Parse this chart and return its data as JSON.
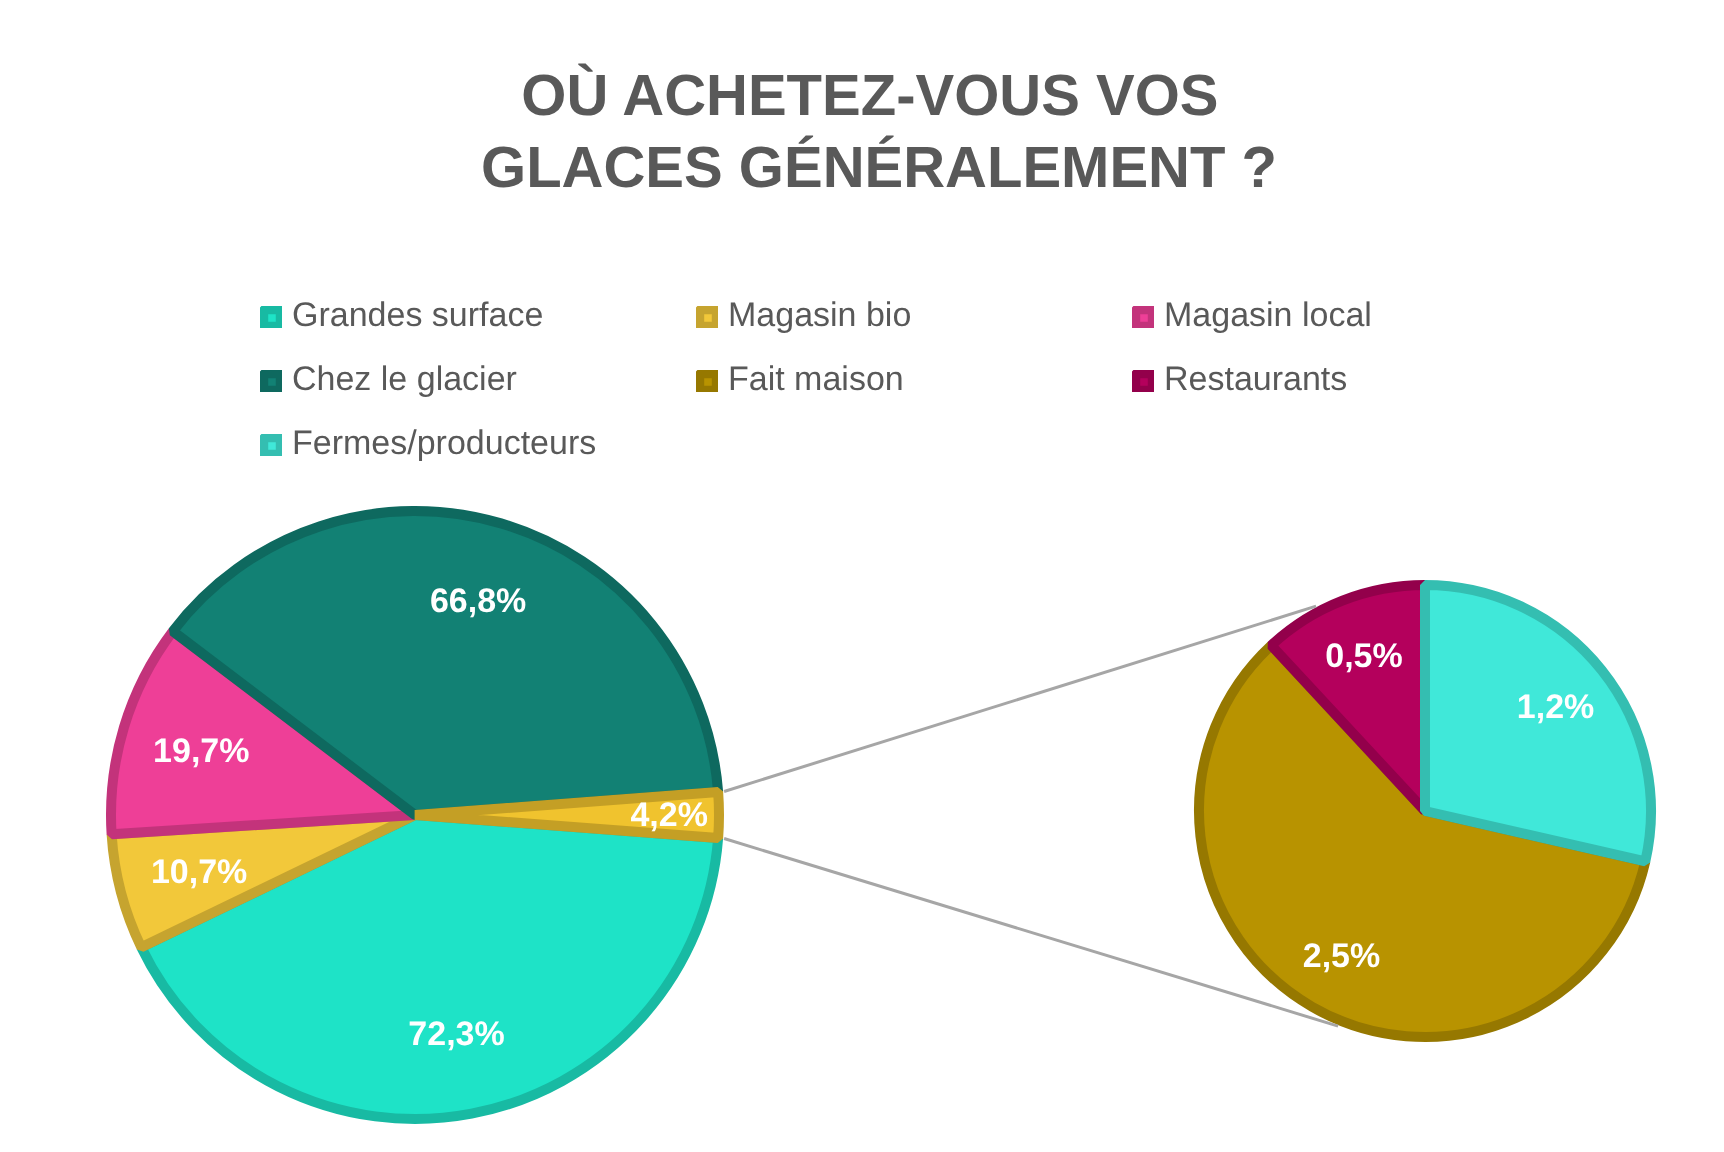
{
  "chart_data": [
    {
      "type": "pie",
      "title": "OÙ ACHETEZ-VOUS  VOS GLACES GÉNÉRALEMENT ?",
      "legend": "top",
      "categories": [
        "Grandes surface",
        "Magasin bio",
        "Magasin local",
        "Chez le glacier",
        null
      ],
      "values": [
        72.3,
        10.7,
        19.7,
        66.8,
        4.2
      ],
      "value_labels": [
        "72,3%",
        "10,7%",
        "19,7%",
        "66,8%",
        "4,2%"
      ],
      "colors": [
        "#1ee3c7",
        "#f2c83a",
        "#ee3f97",
        "#128174",
        "#f0c32e"
      ]
    },
    {
      "type": "pie",
      "legend": "top",
      "categories": [
        "Fait maison",
        "Restaurants",
        "Fermes/producteurs"
      ],
      "values": [
        2.5,
        0.5,
        1.2
      ],
      "value_labels": [
        "2,5%",
        "0,5%",
        "1,2%"
      ],
      "colors": [
        "#b89300",
        "#b4005c",
        "#40e8d9"
      ]
    }
  ]
}
